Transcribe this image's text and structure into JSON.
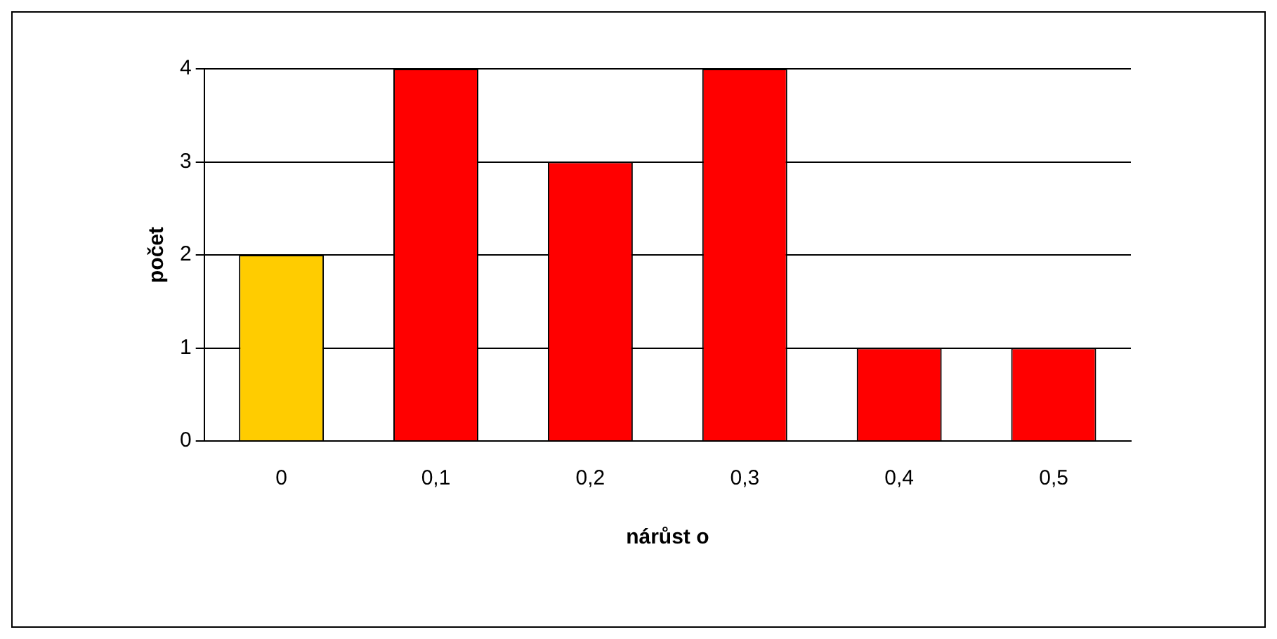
{
  "chart_data": {
    "type": "bar",
    "xlabel": "nárůst o",
    "ylabel": "počet",
    "categories": [
      "0",
      "0,1",
      "0,2",
      "0,3",
      "0,4",
      "0,5"
    ],
    "values": [
      2,
      4,
      3,
      4,
      1,
      1
    ],
    "colors": [
      "#ffcc00",
      "#ff0000",
      "#ff0000",
      "#ff0000",
      "#ff0000",
      "#ff0000"
    ],
    "ylim": [
      0,
      4
    ],
    "yticks": [
      0,
      1,
      2,
      3,
      4
    ],
    "grid": "y",
    "legend": false
  }
}
